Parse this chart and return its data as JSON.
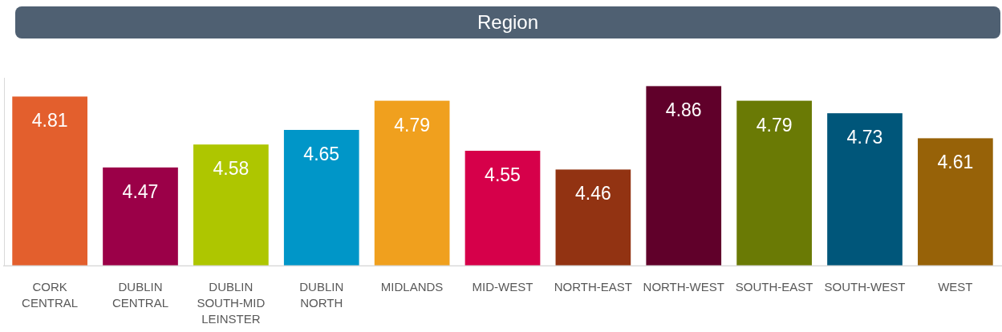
{
  "chart_data": {
    "type": "bar",
    "title": "Region",
    "categories": [
      "CORK CENTRAL",
      "DUBLIN CENTRAL",
      "DUBLIN SOUTH-MID LEINSTER",
      "DUBLIN NORTH",
      "MIDLANDS",
      "MID-WEST",
      "NORTH-EAST",
      "NORTH-WEST",
      "SOUTH-EAST",
      "SOUTH-WEST",
      "WEST"
    ],
    "values": [
      4.81,
      4.47,
      4.58,
      4.65,
      4.79,
      4.55,
      4.46,
      4.86,
      4.79,
      4.73,
      4.61
    ],
    "colors": [
      "#e35f2d",
      "#9b0048",
      "#aec600",
      "#0096c8",
      "#f0a01e",
      "#d6004a",
      "#923312",
      "#60002a",
      "#6a7a05",
      "#00567a",
      "#976208"
    ],
    "ylim": [
      4,
      4.9
    ],
    "data_labels": true
  }
}
